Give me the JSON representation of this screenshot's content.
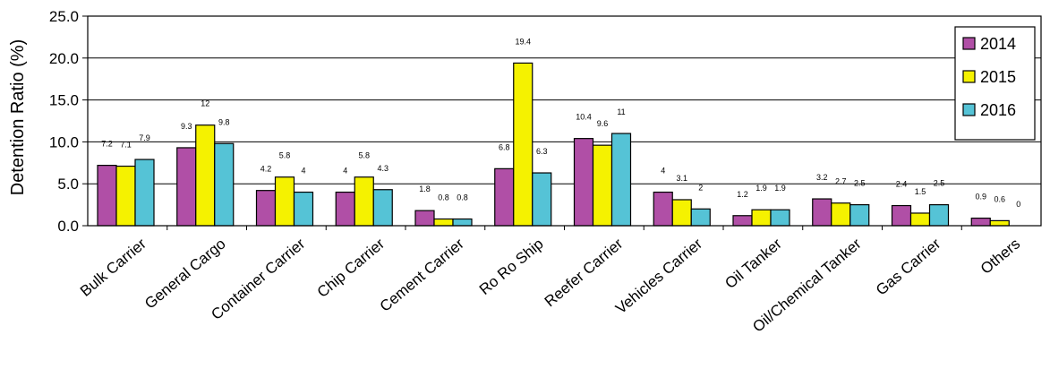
{
  "chart_data": {
    "type": "bar",
    "ylabel": "Detention Ratio (%)",
    "ylim": [
      0,
      25
    ],
    "yticks": [
      "0.0",
      "5.0",
      "10.0",
      "15.0",
      "20.0",
      "25.0"
    ],
    "grid": true,
    "legend_position": "top-right",
    "categories": [
      "Bulk Carrier",
      "General Cargo",
      "Container Carrier",
      "Chip Carrier",
      "Cement Carrier",
      "Ro Ro Ship",
      "Reefer Carrier",
      "Vehicles Carrier",
      "Oil Tanker",
      "Oil/Chemical Tanker",
      "Gas Carrier",
      "Others"
    ],
    "series": [
      {
        "name": "2014",
        "color": "#b04fa6",
        "values": [
          7.2,
          9.3,
          4.2,
          4,
          1.8,
          6.8,
          10.4,
          4,
          1.2,
          3.2,
          2.4,
          0.9
        ]
      },
      {
        "name": "2015",
        "color": "#f5f200",
        "values": [
          7.1,
          12,
          5.8,
          5.8,
          0.8,
          19.4,
          9.6,
          3.1,
          1.9,
          2.7,
          1.5,
          0.6
        ]
      },
      {
        "name": "2016",
        "color": "#55c3d6",
        "values": [
          7.9,
          9.8,
          4,
          4.3,
          0.8,
          6.3,
          11,
          2,
          1.9,
          2.5,
          2.5,
          0
        ]
      }
    ]
  }
}
